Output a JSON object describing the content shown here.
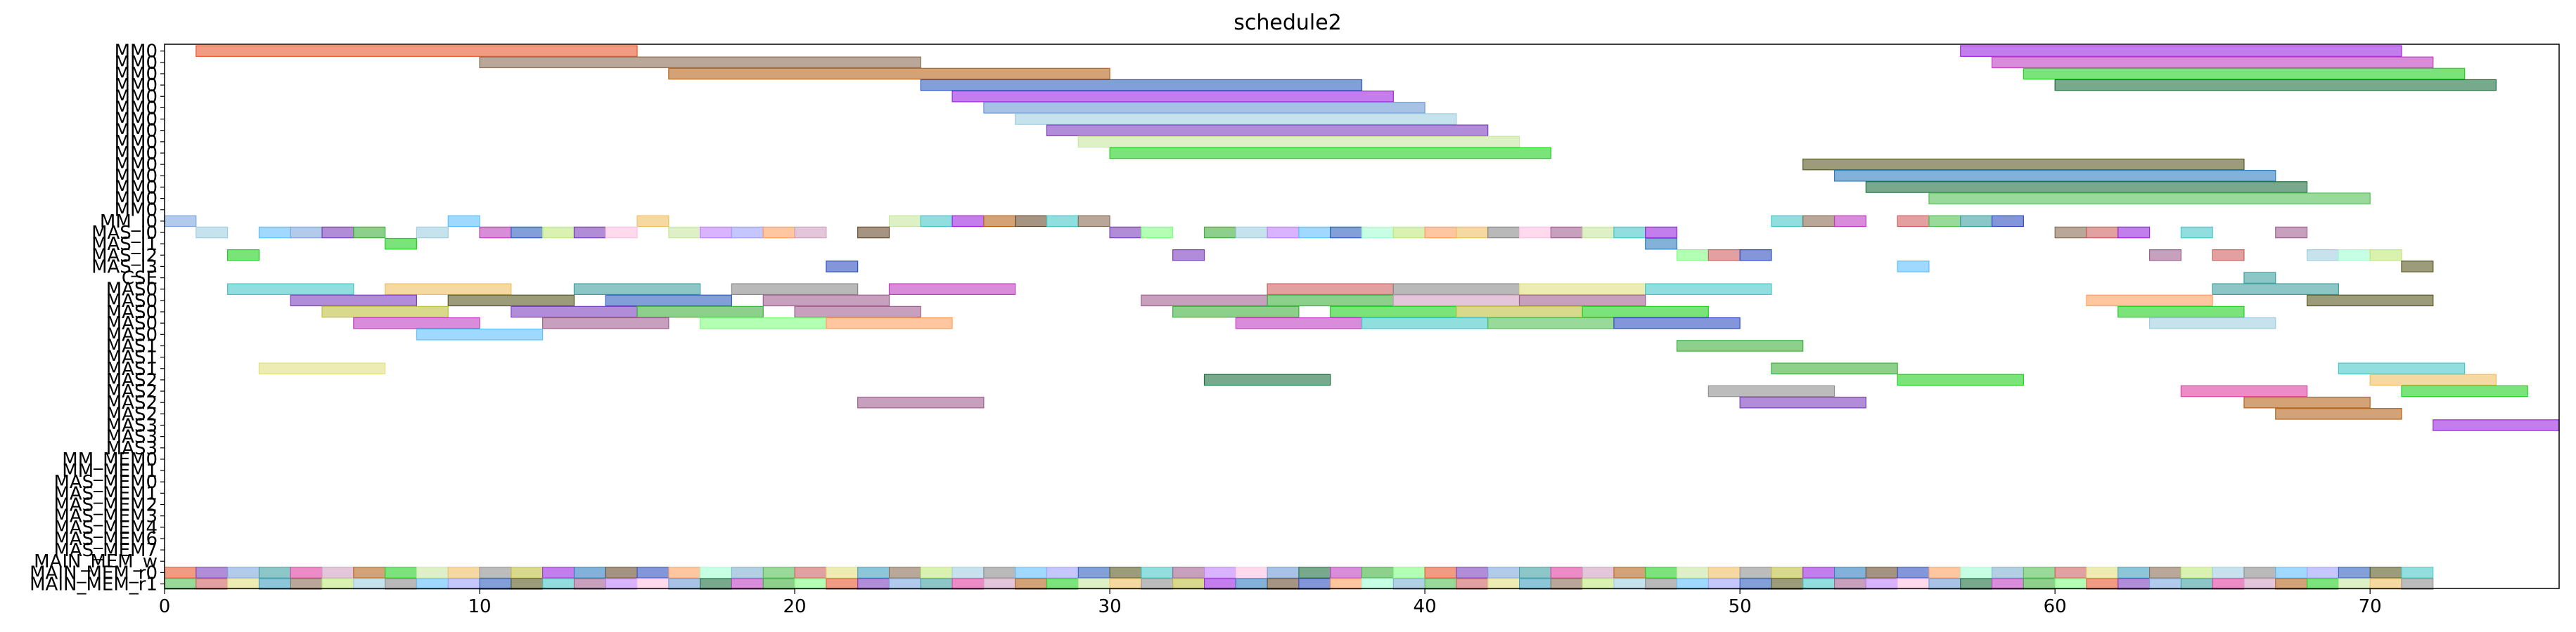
{
  "chart_data": {
    "type": "gantt",
    "title": "schedule2",
    "xlabel": "",
    "ylabel": "",
    "xlim": [
      0,
      76
    ],
    "xticks": [
      0,
      10,
      20,
      30,
      40,
      50,
      60,
      70
    ],
    "grid": false,
    "rows": [
      "MM0",
      "MM0",
      "MM0",
      "MM0",
      "MM0",
      "MM0",
      "MM0",
      "MM0",
      "MM0",
      "MM0",
      "MM0",
      "MM0",
      "MM0",
      "MM0",
      "MM0",
      "MM_I0",
      "MAS_I0",
      "MAS_I1",
      "MAS_I2",
      "MAS_I3",
      "CSE",
      "MAS0",
      "MAS0",
      "MAS0",
      "MAS0",
      "MAS0",
      "MAS1",
      "MAS1",
      "MAS1",
      "MAS2",
      "MAS2",
      "MAS2",
      "MAS2",
      "MAS3",
      "MAS3",
      "MAS3",
      "MM_MEM0",
      "MM_MEM1",
      "MAS_MEM0",
      "MAS_MEM1",
      "MAS_MEM2",
      "MAS_MEM3",
      "MAS_MEM4",
      "MAS_MEM6",
      "MAS_MEM7",
      "MAIN_MEM_w",
      "MAIN_MEM_r0",
      "MAIN_MEM_r1"
    ],
    "palette": [
      "#e8582e",
      "#8b6e55",
      "#b5651d",
      "#2f5fbf",
      "#9b26e0",
      "#6e9ad6",
      "#7fb0d0",
      "#7b3fbf",
      "#bfe97a",
      "#21d221",
      "#5a5a23",
      "#2f7fbf",
      "#1f6f3f",
      "#55c055",
      "#7fa8e0",
      "#a0cfe0",
      "#c8e7a0",
      "#46c8c8",
      "#6b4c2e",
      "#c040c0",
      "#d06060",
      "#3fa0a0",
      "#8a8a8a",
      "#f0c060",
      "#a06090",
      "#3050c0",
      "#40b040",
      "#e0e080",
      "#e040a0",
      "#60c0ff",
      "#909090",
      "#c080ff",
      "#ffa060",
      "#80ff80",
      "#40a0c0",
      "#d0a0c0",
      "#a0a0ff",
      "#c0c040",
      "#ffc0e0",
      "#a0ffd0"
    ],
    "intervals": [
      {
        "row": 0,
        "start": 1,
        "end": 15,
        "c": 0
      },
      {
        "row": 0,
        "start": 57,
        "end": 71,
        "c": 4
      },
      {
        "row": 1,
        "start": 10,
        "end": 24,
        "c": 1
      },
      {
        "row": 1,
        "start": 58,
        "end": 72,
        "c": 19
      },
      {
        "row": 2,
        "start": 16,
        "end": 30,
        "c": 2
      },
      {
        "row": 2,
        "start": 59,
        "end": 73,
        "c": 9
      },
      {
        "row": 3,
        "start": 24,
        "end": 38,
        "c": 3
      },
      {
        "row": 3,
        "start": 60,
        "end": 74,
        "c": 12
      },
      {
        "row": 4,
        "start": 25,
        "end": 39,
        "c": 4
      },
      {
        "row": 5,
        "start": 26,
        "end": 40,
        "c": 5
      },
      {
        "row": 6,
        "start": 27,
        "end": 41,
        "c": 15
      },
      {
        "row": 7,
        "start": 28,
        "end": 42,
        "c": 7
      },
      {
        "row": 8,
        "start": 29,
        "end": 43,
        "c": 16
      },
      {
        "row": 9,
        "start": 30,
        "end": 44,
        "c": 9
      },
      {
        "row": 10,
        "start": 52,
        "end": 66,
        "c": 10
      },
      {
        "row": 11,
        "start": 53,
        "end": 67,
        "c": 11
      },
      {
        "row": 12,
        "start": 54,
        "end": 68,
        "c": 12
      },
      {
        "row": 13,
        "start": 56,
        "end": 70,
        "c": 13
      },
      {
        "row": 15,
        "start": 0,
        "end": 1,
        "c": 14
      },
      {
        "row": 15,
        "start": 9,
        "end": 10,
        "c": 29
      },
      {
        "row": 15,
        "start": 15,
        "end": 16,
        "c": 23
      },
      {
        "row": 15,
        "start": 23,
        "end": 24,
        "c": 16
      },
      {
        "row": 15,
        "start": 24,
        "end": 25,
        "c": 17
      },
      {
        "row": 15,
        "start": 25,
        "end": 26,
        "c": 4
      },
      {
        "row": 15,
        "start": 26,
        "end": 27,
        "c": 2
      },
      {
        "row": 15,
        "start": 27,
        "end": 28,
        "c": 18
      },
      {
        "row": 15,
        "start": 28,
        "end": 29,
        "c": 17
      },
      {
        "row": 15,
        "start": 29,
        "end": 30,
        "c": 1
      },
      {
        "row": 15,
        "start": 51,
        "end": 52,
        "c": 17
      },
      {
        "row": 15,
        "start": 52,
        "end": 53,
        "c": 1
      },
      {
        "row": 15,
        "start": 53,
        "end": 54,
        "c": 19
      },
      {
        "row": 15,
        "start": 55,
        "end": 56,
        "c": 20
      },
      {
        "row": 15,
        "start": 56,
        "end": 57,
        "c": 13
      },
      {
        "row": 15,
        "start": 57,
        "end": 58,
        "c": 21
      },
      {
        "row": 15,
        "start": 58,
        "end": 59,
        "c": 25
      },
      {
        "row": 16,
        "start": 1,
        "end": 2,
        "c": 15
      },
      {
        "row": 16,
        "start": 3,
        "end": 4,
        "c": 29
      },
      {
        "row": 16,
        "start": 4,
        "end": 5,
        "c": 14
      },
      {
        "row": 16,
        "start": 5,
        "end": 6,
        "c": 7
      },
      {
        "row": 16,
        "start": 6,
        "end": 7,
        "c": 26
      },
      {
        "row": 16,
        "start": 8,
        "end": 9,
        "c": 15
      },
      {
        "row": 16,
        "start": 10,
        "end": 11,
        "c": 19
      },
      {
        "row": 16,
        "start": 11,
        "end": 12,
        "c": 3
      },
      {
        "row": 16,
        "start": 12,
        "end": 13,
        "c": 8
      },
      {
        "row": 16,
        "start": 13,
        "end": 14,
        "c": 7
      },
      {
        "row": 16,
        "start": 14,
        "end": 15,
        "c": 38
      },
      {
        "row": 16,
        "start": 16,
        "end": 17,
        "c": 16
      },
      {
        "row": 16,
        "start": 17,
        "end": 18,
        "c": 31
      },
      {
        "row": 16,
        "start": 18,
        "end": 19,
        "c": 36
      },
      {
        "row": 16,
        "start": 19,
        "end": 20,
        "c": 32
      },
      {
        "row": 16,
        "start": 20,
        "end": 21,
        "c": 35
      },
      {
        "row": 16,
        "start": 22,
        "end": 23,
        "c": 18
      },
      {
        "row": 16,
        "start": 30,
        "end": 31,
        "c": 7
      },
      {
        "row": 16,
        "start": 31,
        "end": 32,
        "c": 33
      },
      {
        "row": 16,
        "start": 33,
        "end": 34,
        "c": 26
      },
      {
        "row": 16,
        "start": 34,
        "end": 35,
        "c": 15
      },
      {
        "row": 16,
        "start": 35,
        "end": 36,
        "c": 31
      },
      {
        "row": 16,
        "start": 36,
        "end": 37,
        "c": 29
      },
      {
        "row": 16,
        "start": 37,
        "end": 38,
        "c": 3
      },
      {
        "row": 16,
        "start": 38,
        "end": 39,
        "c": 39
      },
      {
        "row": 16,
        "start": 39,
        "end": 40,
        "c": 8
      },
      {
        "row": 16,
        "start": 40,
        "end": 41,
        "c": 32
      },
      {
        "row": 16,
        "start": 41,
        "end": 42,
        "c": 23
      },
      {
        "row": 16,
        "start": 42,
        "end": 43,
        "c": 22
      },
      {
        "row": 16,
        "start": 43,
        "end": 44,
        "c": 38
      },
      {
        "row": 16,
        "start": 44,
        "end": 45,
        "c": 24
      },
      {
        "row": 16,
        "start": 45,
        "end": 46,
        "c": 16
      },
      {
        "row": 16,
        "start": 46,
        "end": 47,
        "c": 17
      },
      {
        "row": 16,
        "start": 47,
        "end": 48,
        "c": 4
      },
      {
        "row": 16,
        "start": 60,
        "end": 61,
        "c": 1
      },
      {
        "row": 16,
        "start": 61,
        "end": 62,
        "c": 20
      },
      {
        "row": 16,
        "start": 62,
        "end": 63,
        "c": 4
      },
      {
        "row": 16,
        "start": 64,
        "end": 65,
        "c": 17
      },
      {
        "row": 16,
        "start": 67,
        "end": 68,
        "c": 24
      },
      {
        "row": 17,
        "start": 7,
        "end": 8,
        "c": 9
      },
      {
        "row": 17,
        "start": 47,
        "end": 48,
        "c": 11
      },
      {
        "row": 18,
        "start": 2,
        "end": 3,
        "c": 9
      },
      {
        "row": 18,
        "start": 32,
        "end": 33,
        "c": 7
      },
      {
        "row": 18,
        "start": 48,
        "end": 49,
        "c": 33
      },
      {
        "row": 18,
        "start": 49,
        "end": 50,
        "c": 20
      },
      {
        "row": 18,
        "start": 50,
        "end": 51,
        "c": 25
      },
      {
        "row": 18,
        "start": 63,
        "end": 64,
        "c": 24
      },
      {
        "row": 18,
        "start": 65,
        "end": 66,
        "c": 20
      },
      {
        "row": 18,
        "start": 68,
        "end": 69,
        "c": 15
      },
      {
        "row": 18,
        "start": 69,
        "end": 70,
        "c": 39
      },
      {
        "row": 18,
        "start": 70,
        "end": 71,
        "c": 8
      },
      {
        "row": 19,
        "start": 21,
        "end": 22,
        "c": 25
      },
      {
        "row": 19,
        "start": 55,
        "end": 56,
        "c": 29
      },
      {
        "row": 19,
        "start": 71,
        "end": 72,
        "c": 10
      },
      {
        "row": 20,
        "start": 66,
        "end": 67,
        "c": 21
      },
      {
        "row": 21,
        "start": 2,
        "end": 6,
        "c": 17
      },
      {
        "row": 21,
        "start": 7,
        "end": 11,
        "c": 23
      },
      {
        "row": 21,
        "start": 13,
        "end": 17,
        "c": 21
      },
      {
        "row": 21,
        "start": 18,
        "end": 22,
        "c": 22
      },
      {
        "row": 21,
        "start": 23,
        "end": 27,
        "c": 19
      },
      {
        "row": 21,
        "start": 35,
        "end": 39,
        "c": 20
      },
      {
        "row": 21,
        "start": 39,
        "end": 43,
        "c": 22
      },
      {
        "row": 21,
        "start": 43,
        "end": 47,
        "c": 27
      },
      {
        "row": 21,
        "start": 47,
        "end": 51,
        "c": 17
      },
      {
        "row": 21,
        "start": 65,
        "end": 69,
        "c": 21
      },
      {
        "row": 22,
        "start": 4,
        "end": 8,
        "c": 7
      },
      {
        "row": 22,
        "start": 9,
        "end": 13,
        "c": 10
      },
      {
        "row": 22,
        "start": 14,
        "end": 18,
        "c": 3
      },
      {
        "row": 22,
        "start": 19,
        "end": 23,
        "c": 24
      },
      {
        "row": 22,
        "start": 31,
        "end": 35,
        "c": 24
      },
      {
        "row": 22,
        "start": 35,
        "end": 39,
        "c": 26
      },
      {
        "row": 22,
        "start": 39,
        "end": 43,
        "c": 35
      },
      {
        "row": 22,
        "start": 43,
        "end": 47,
        "c": 24
      },
      {
        "row": 22,
        "start": 61,
        "end": 65,
        "c": 32
      },
      {
        "row": 22,
        "start": 68,
        "end": 72,
        "c": 10
      },
      {
        "row": 23,
        "start": 5,
        "end": 9,
        "c": 37
      },
      {
        "row": 23,
        "start": 11,
        "end": 15,
        "c": 7
      },
      {
        "row": 23,
        "start": 15,
        "end": 19,
        "c": 26
      },
      {
        "row": 23,
        "start": 20,
        "end": 24,
        "c": 24
      },
      {
        "row": 23,
        "start": 32,
        "end": 36,
        "c": 26
      },
      {
        "row": 23,
        "start": 37,
        "end": 41,
        "c": 9
      },
      {
        "row": 23,
        "start": 41,
        "end": 45,
        "c": 37
      },
      {
        "row": 23,
        "start": 45,
        "end": 49,
        "c": 9
      },
      {
        "row": 23,
        "start": 62,
        "end": 66,
        "c": 9
      },
      {
        "row": 24,
        "start": 6,
        "end": 10,
        "c": 19
      },
      {
        "row": 24,
        "start": 12,
        "end": 16,
        "c": 24
      },
      {
        "row": 24,
        "start": 17,
        "end": 21,
        "c": 33
      },
      {
        "row": 24,
        "start": 21,
        "end": 25,
        "c": 32
      },
      {
        "row": 24,
        "start": 34,
        "end": 38,
        "c": 19
      },
      {
        "row": 24,
        "start": 38,
        "end": 42,
        "c": 17
      },
      {
        "row": 24,
        "start": 42,
        "end": 46,
        "c": 13
      },
      {
        "row": 24,
        "start": 46,
        "end": 50,
        "c": 25
      },
      {
        "row": 24,
        "start": 63,
        "end": 67,
        "c": 15
      },
      {
        "row": 25,
        "start": 8,
        "end": 12,
        "c": 29
      },
      {
        "row": 26,
        "start": 48,
        "end": 52,
        "c": 26
      },
      {
        "row": 28,
        "start": 3,
        "end": 7,
        "c": 27
      },
      {
        "row": 28,
        "start": 51,
        "end": 55,
        "c": 26
      },
      {
        "row": 28,
        "start": 69,
        "end": 73,
        "c": 17
      },
      {
        "row": 29,
        "start": 33,
        "end": 37,
        "c": 12
      },
      {
        "row": 29,
        "start": 55,
        "end": 59,
        "c": 9
      },
      {
        "row": 29,
        "start": 70,
        "end": 74,
        "c": 23
      },
      {
        "row": 30,
        "start": 49,
        "end": 53,
        "c": 30
      },
      {
        "row": 30,
        "start": 64,
        "end": 68,
        "c": 28
      },
      {
        "row": 30,
        "start": 71,
        "end": 75,
        "c": 9
      },
      {
        "row": 31,
        "start": 22,
        "end": 26,
        "c": 24
      },
      {
        "row": 31,
        "start": 50,
        "end": 54,
        "c": 7
      },
      {
        "row": 31,
        "start": 66,
        "end": 70,
        "c": 2
      },
      {
        "row": 32,
        "start": 67,
        "end": 71,
        "c": 2
      },
      {
        "row": 33,
        "start": 72,
        "end": 76,
        "c": 4
      }
    ],
    "memory_rows": {
      "rows": [
        46,
        47
      ],
      "from": 0,
      "to": 72,
      "step": 1
    }
  }
}
